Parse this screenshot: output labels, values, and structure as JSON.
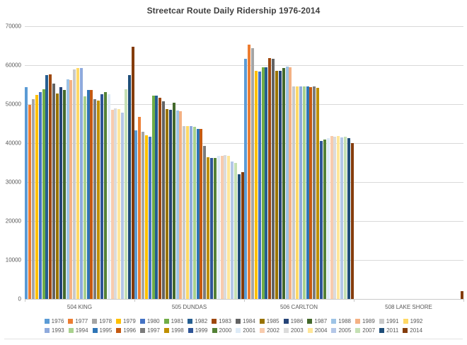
{
  "chart_data": {
    "type": "bar",
    "title": "Streetcar Route Daily Ridership 1976-2014",
    "ylim": [
      0,
      70000
    ],
    "ytick_step": 10000,
    "grid": true,
    "legend_position": "bottom",
    "legend_rows": 2,
    "axis_text_color": "#595959",
    "gridline_color": "#d9d9d9",
    "categories": [
      "504 KING",
      "505 DUNDAS",
      "506 CARLTON",
      "508 LAKE SHORE"
    ],
    "series": [
      {
        "name": "1976",
        "color": "#5B9BD5",
        "values": [
          54300,
          43300,
          61600,
          null
        ]
      },
      {
        "name": "1977",
        "color": "#ED7D31",
        "values": [
          49800,
          46800,
          65200,
          null
        ]
      },
      {
        "name": "1978",
        "color": "#A5A5A5",
        "values": [
          51200,
          43000,
          64400,
          null
        ]
      },
      {
        "name": "1979",
        "color": "#FFC000",
        "values": [
          52300,
          42000,
          58600,
          null
        ]
      },
      {
        "name": "1980",
        "color": "#4472C4",
        "values": [
          53100,
          41600,
          58300,
          null
        ]
      },
      {
        "name": "1981",
        "color": "#70AD47",
        "values": [
          53900,
          52200,
          59500,
          null
        ]
      },
      {
        "name": "1982",
        "color": "#255E91",
        "values": [
          57400,
          52100,
          59400,
          null
        ]
      },
      {
        "name": "1983",
        "color": "#9E480E",
        "values": [
          57600,
          51700,
          61800,
          null
        ]
      },
      {
        "name": "1984",
        "color": "#636363",
        "values": [
          55200,
          50700,
          61600,
          null
        ]
      },
      {
        "name": "1985",
        "color": "#997300",
        "values": [
          52800,
          48700,
          58600,
          null
        ]
      },
      {
        "name": "1986",
        "color": "#264478",
        "values": [
          54400,
          48600,
          58600,
          null
        ]
      },
      {
        "name": "1987",
        "color": "#43682B",
        "values": [
          53700,
          50300,
          59200,
          null
        ]
      },
      {
        "name": "1988",
        "color": "#9DC3E6",
        "values": [
          56400,
          48300,
          59700,
          null
        ]
      },
      {
        "name": "1989",
        "color": "#F4B183",
        "values": [
          56100,
          48100,
          59500,
          null
        ]
      },
      {
        "name": "1991",
        "color": "#C9C9C9",
        "values": [
          58900,
          44400,
          54600,
          null
        ]
      },
      {
        "name": "1992",
        "color": "#FFD966",
        "values": [
          59200,
          44300,
          54500,
          null
        ]
      },
      {
        "name": "1993",
        "color": "#8FAADC",
        "values": [
          59200,
          44400,
          54600,
          null
        ]
      },
      {
        "name": "1994",
        "color": "#A9D18E",
        "values": [
          52000,
          44200,
          54600,
          null
        ]
      },
      {
        "name": "1995",
        "color": "#2E75B6",
        "values": [
          53700,
          43700,
          54500,
          null
        ]
      },
      {
        "name": "1996",
        "color": "#C55A11",
        "values": [
          53600,
          43700,
          54400,
          null
        ]
      },
      {
        "name": "1997",
        "color": "#7B7B7B",
        "values": [
          51200,
          39200,
          54500,
          null
        ]
      },
      {
        "name": "1998",
        "color": "#BF8F00",
        "values": [
          51000,
          36300,
          54200,
          null
        ]
      },
      {
        "name": "1999",
        "color": "#2F5597",
        "values": [
          52600,
          36200,
          40600,
          null
        ]
      },
      {
        "name": "2000",
        "color": "#538135",
        "values": [
          53100,
          36100,
          41000,
          null
        ]
      },
      {
        "name": "2001",
        "color": "#DEEBF7",
        "values": [
          52500,
          36700,
          41300,
          null
        ]
      },
      {
        "name": "2002",
        "color": "#F8CBAD",
        "values": [
          48600,
          36700,
          41800,
          null
        ]
      },
      {
        "name": "2003",
        "color": "#DBDBDB",
        "values": [
          49000,
          36900,
          41700,
          null
        ]
      },
      {
        "name": "2004",
        "color": "#FFE699",
        "values": [
          48800,
          36800,
          41800,
          null
        ]
      },
      {
        "name": "2005",
        "color": "#B4C7E7",
        "values": [
          47800,
          35300,
          41500,
          null
        ]
      },
      {
        "name": "2007",
        "color": "#C5E0B4",
        "values": [
          53800,
          35000,
          41700,
          null
        ]
      },
      {
        "name": "2011",
        "color": "#1F4E79",
        "values": [
          57500,
          32000,
          41300,
          null
        ]
      },
      {
        "name": "2014",
        "color": "#843C0C",
        "values": [
          64800,
          32600,
          40000,
          2000
        ]
      }
    ]
  }
}
